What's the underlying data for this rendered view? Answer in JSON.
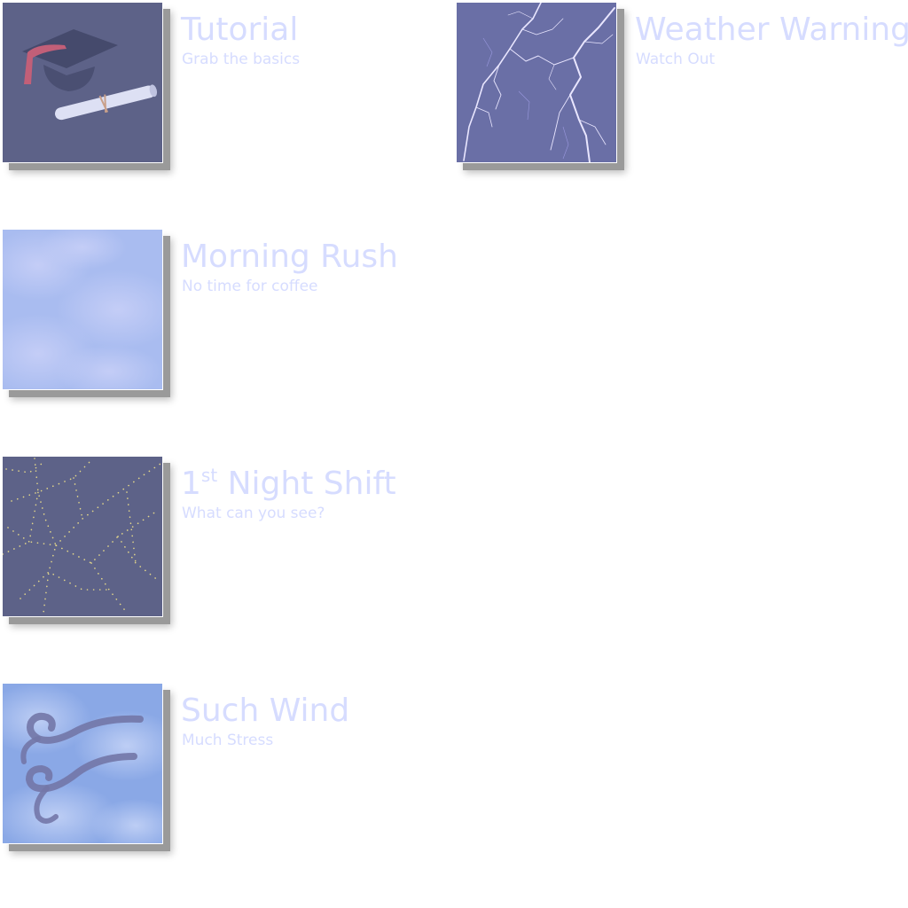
{
  "colors": {
    "text": "#d6dcff",
    "thumb_dark": "#5d6288",
    "thumb_sky": "#a9bcf0",
    "shadow": "#9a9a9a"
  },
  "levels": [
    {
      "title": "Tutorial",
      "subtitle": "Grab the basics",
      "icon": "graduation-cap-diploma-icon"
    },
    {
      "title": "Weather Warning",
      "subtitle": "Watch Out",
      "icon": "lightning-icon"
    },
    {
      "title": "Morning Rush",
      "subtitle": "No time for coffee",
      "icon": "clouds-icon"
    },
    {
      "title_num": "1",
      "title_sup": "st",
      "title_rest": " Night Shift",
      "subtitle": "What can you see?",
      "icon": "city-lights-icon"
    },
    {
      "title": "Such Wind",
      "subtitle": "Much Stress",
      "icon": "wind-icon"
    }
  ]
}
